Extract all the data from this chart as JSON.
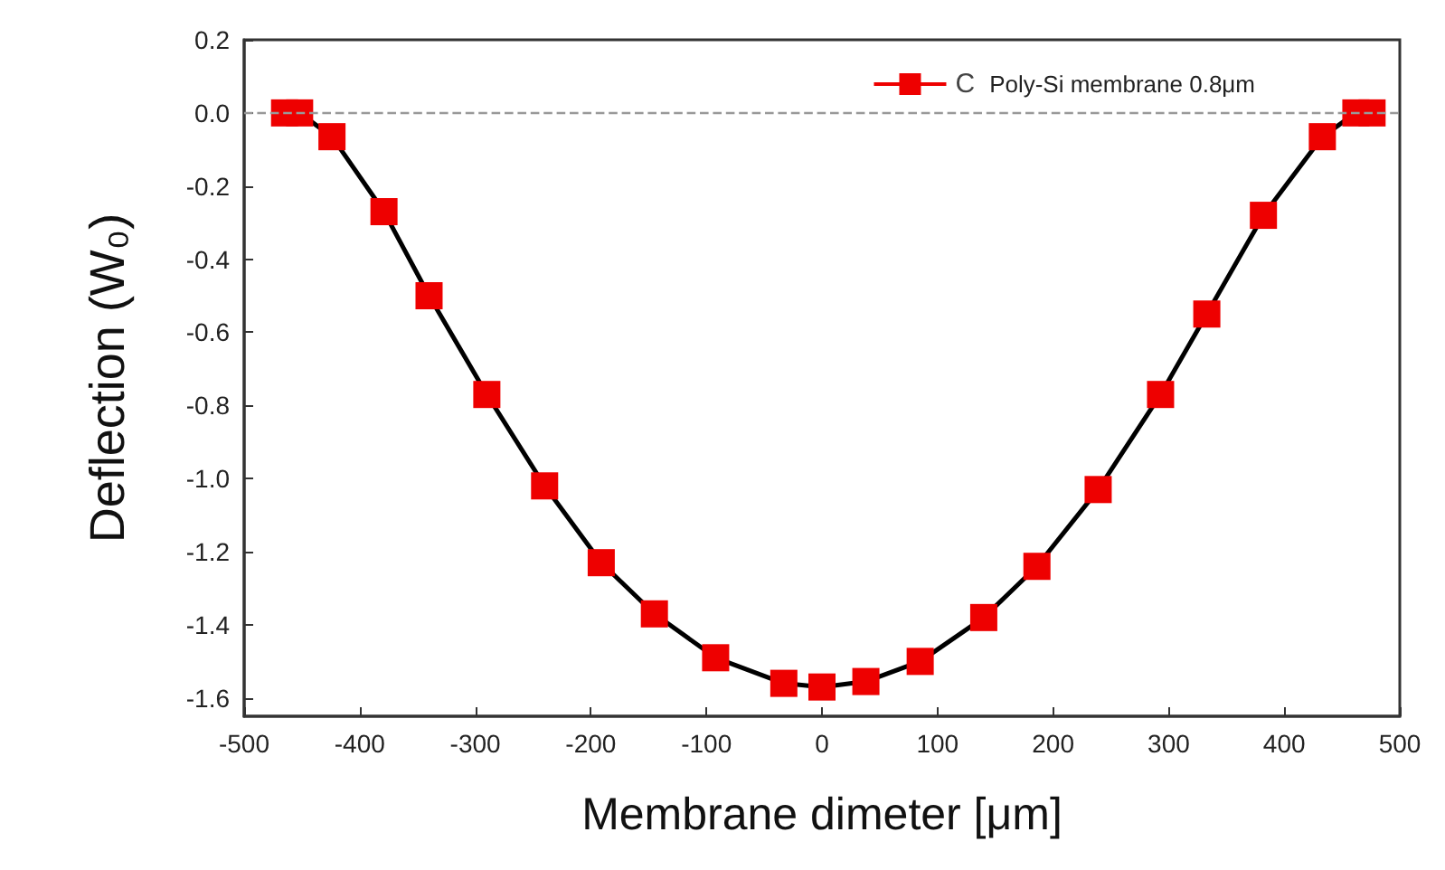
{
  "chart_data": {
    "type": "line",
    "xlabel": "Membrane dimeter [μm]",
    "ylabel": "Deflection (W₀)",
    "x": [
      -465,
      -452,
      -424,
      -379,
      -340,
      -290,
      -240,
      -191,
      -145,
      -92,
      -33,
      0,
      38,
      85,
      140,
      186,
      239,
      293,
      333,
      382,
      433,
      462,
      476
    ],
    "series": [
      {
        "name": "Poly-Si membrane 0.8μm",
        "color": "#ee0000",
        "values": [
          0,
          0,
          -0.065,
          -0.27,
          -0.5,
          -0.77,
          -1.02,
          -1.23,
          -1.37,
          -1.49,
          -1.56,
          -1.57,
          -1.555,
          -1.5,
          -1.38,
          -1.24,
          -1.03,
          -0.77,
          -0.55,
          -0.28,
          -0.065,
          0,
          0
        ]
      }
    ],
    "xlim": [
      -500,
      500
    ],
    "xticks": [
      -500,
      -400,
      -300,
      -200,
      -100,
      0,
      100,
      200,
      300,
      400,
      500
    ],
    "ylim": [
      -1.65,
      0.2
    ],
    "yticks": [
      0.2,
      {
        "value": 0,
        "label": "0.0"
      },
      -0.2,
      -0.4,
      -0.6,
      -0.8,
      {
        "value": -1,
        "label": "-1.0"
      },
      -1.2,
      -1.4,
      -1.6
    ],
    "ref_lines": [
      {
        "axis": "y",
        "value": 0,
        "color": "#999999",
        "line_style": "dashed"
      }
    ],
    "annotations": [
      "C"
    ],
    "marker": "square",
    "line_style": "solid",
    "grid": false,
    "legend": "top right"
  }
}
